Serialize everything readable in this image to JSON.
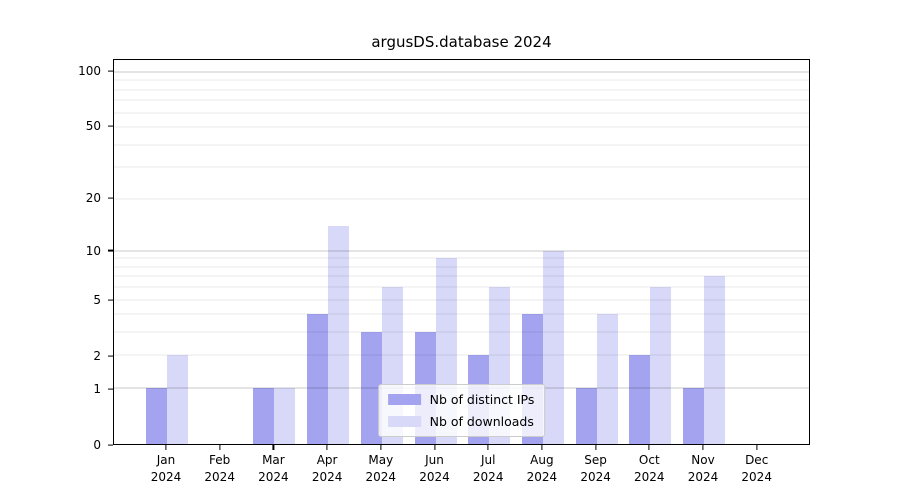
{
  "title": "argusDS.database 2024",
  "legend": {
    "items": [
      {
        "label": "Nb of distinct IPs",
        "color": "#a3a3f0"
      },
      {
        "label": "Nb of downloads",
        "color": "#d8d8f8"
      }
    ]
  },
  "chart_data": {
    "type": "bar",
    "title": "argusDS.database 2024",
    "categories": [
      "Jan",
      "Feb",
      "Mar",
      "Apr",
      "May",
      "Jun",
      "Jul",
      "Aug",
      "Sep",
      "Oct",
      "Nov",
      "Dec"
    ],
    "category_year": "2024",
    "series": [
      {
        "name": "Nb of distinct IPs",
        "color": "#a3a3f0",
        "values": [
          1,
          0,
          1,
          4,
          3,
          3,
          2,
          4,
          1,
          2,
          1,
          0
        ]
      },
      {
        "name": "Nb of downloads",
        "color": "#d8d8f8",
        "values": [
          2,
          0,
          1,
          14,
          6,
          9,
          6,
          10,
          4,
          6,
          7,
          0
        ]
      }
    ],
    "xlabel": "",
    "ylabel": "",
    "yscale": "log1p",
    "ylim": [
      0,
      116
    ],
    "y_tick_labels": [
      "0",
      "1",
      "2",
      "5",
      "10",
      "20",
      "50",
      "100"
    ],
    "y_tick_values": [
      0,
      1,
      2,
      5,
      10,
      20,
      50,
      100
    ],
    "y_major_gridlines": [
      1,
      10,
      100
    ],
    "y_minor_gridlines": [
      2,
      3,
      4,
      5,
      6,
      7,
      8,
      9,
      20,
      30,
      40,
      50,
      60,
      70,
      80,
      90
    ],
    "grid": true,
    "legend_position": "lower center"
  }
}
